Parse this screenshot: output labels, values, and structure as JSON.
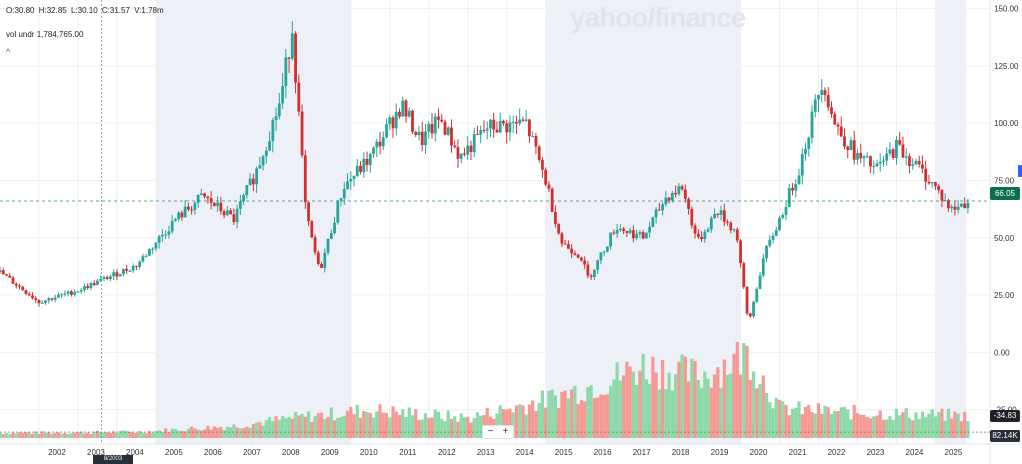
{
  "header": {
    "open": "O:30.80",
    "high": "H:32.85",
    "low": "L:30.10",
    "close": "C:31.57",
    "volume": "V:1.78m",
    "vol_label": "vol undr",
    "vol_value": "1,784,765.00",
    "collapse_glyph": "^"
  },
  "watermark": "yahoo/finance",
  "zoom": {
    "minus": "−",
    "plus": "+"
  },
  "tags": {
    "last_price": "66.05",
    "crosshair_value": "-34.83",
    "volume_value": "82.14K",
    "crosshair_date": "8/2003"
  },
  "colors": {
    "up": "#26a69a",
    "down": "#d32f2f",
    "vol_up": "#8dd9a9",
    "vol_down": "#f49a92",
    "shade": "#eef0f7",
    "grid": "#f0f0f3",
    "last_price_line": "#2a8f6f"
  },
  "chart_data": {
    "type": "candlestick",
    "x_unit": "year",
    "price_axis": {
      "ticks": [
        150,
        125,
        100,
        75,
        50,
        25,
        0,
        -25
      ],
      "tick_labels": [
        "150.00",
        "125.00",
        "100.00",
        "75.00",
        "50.00",
        "25.00",
        "0.00",
        "-25.00"
      ],
      "range": [
        -40,
        152
      ]
    },
    "x_axis": {
      "range": [
        2001,
        2026.4
      ],
      "ticks": [
        2002,
        2003,
        2004,
        2005,
        2006,
        2007,
        2008,
        2009,
        2010,
        2011,
        2012,
        2013,
        2014,
        2015,
        2016,
        2017,
        2018,
        2019,
        2020,
        2021,
        2022,
        2023,
        2024,
        2025
      ],
      "tick_labels": [
        "2002",
        "2003",
        "2004",
        "2005",
        "2006",
        "2007",
        "2008",
        "2009",
        "2010",
        "2011",
        "2012",
        "2013",
        "2014",
        "2015",
        "2016",
        "2017",
        "2018",
        "2019",
        "2020",
        "2021",
        "2022",
        "2023",
        "2024",
        "2025"
      ]
    },
    "shaded_ranges": [
      [
        2005,
        2010
      ],
      [
        2015,
        2020
      ],
      [
        2025,
        2025.8
      ]
    ],
    "last_price": 66.05,
    "crosshair": {
      "x": 2003.6,
      "y": -34.83
    },
    "price_anchors": [
      [
        2001.0,
        35
      ],
      [
        2002.0,
        22
      ],
      [
        2003.0,
        27
      ],
      [
        2003.6,
        31.5
      ],
      [
        2004.5,
        38
      ],
      [
        2005.5,
        58
      ],
      [
        2006.2,
        68
      ],
      [
        2007.0,
        58
      ],
      [
        2007.6,
        80
      ],
      [
        2008.2,
        110
      ],
      [
        2008.5,
        142
      ],
      [
        2008.85,
        60
      ],
      [
        2009.2,
        35
      ],
      [
        2009.8,
        72
      ],
      [
        2010.5,
        85
      ],
      [
        2011.3,
        108
      ],
      [
        2011.8,
        92
      ],
      [
        2012.3,
        102
      ],
      [
        2012.8,
        85
      ],
      [
        2013.5,
        98
      ],
      [
        2014.5,
        100
      ],
      [
        2015.0,
        75
      ],
      [
        2015.4,
        48
      ],
      [
        2015.9,
        42
      ],
      [
        2016.1,
        32
      ],
      [
        2016.8,
        55
      ],
      [
        2017.5,
        50
      ],
      [
        2018.1,
        68
      ],
      [
        2018.5,
        72
      ],
      [
        2018.9,
        48
      ],
      [
        2019.4,
        62
      ],
      [
        2019.9,
        52
      ],
      [
        2020.2,
        12
      ],
      [
        2020.6,
        42
      ],
      [
        2021.0,
        58
      ],
      [
        2021.5,
        80
      ],
      [
        2022.1,
        120
      ],
      [
        2022.4,
        100
      ],
      [
        2023.0,
        85
      ],
      [
        2023.5,
        80
      ],
      [
        2024.0,
        90
      ],
      [
        2024.6,
        80
      ],
      [
        2025.0,
        72
      ],
      [
        2025.4,
        62
      ],
      [
        2025.85,
        66.05
      ]
    ],
    "volume_anchors": [
      [
        2001.0,
        5
      ],
      [
        2004.5,
        6
      ],
      [
        2007.0,
        12
      ],
      [
        2008.5,
        20
      ],
      [
        2010.5,
        28
      ],
      [
        2013.0,
        20
      ],
      [
        2015.0,
        38
      ],
      [
        2016.5,
        56
      ],
      [
        2017.5,
        72
      ],
      [
        2019.0,
        62
      ],
      [
        2020.2,
        85
      ],
      [
        2021.0,
        30
      ],
      [
        2022.5,
        26
      ],
      [
        2025.85,
        22
      ]
    ]
  }
}
